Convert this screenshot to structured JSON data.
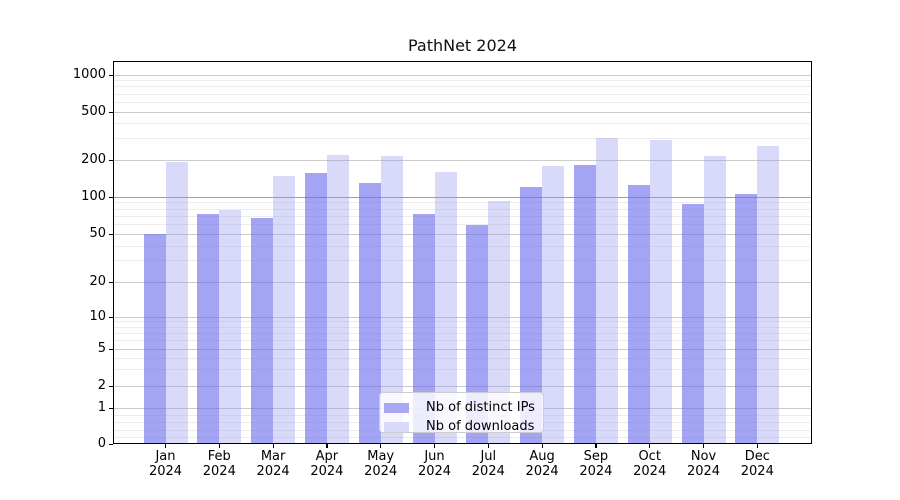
{
  "figure": {
    "title": "PathNet 2024"
  },
  "colors": {
    "ips_bar": "rgba(108,108,239,0.62)",
    "downloads_bar": "rgba(150,150,240,0.36)",
    "ips_legend": "#a8a8f4",
    "downloads_legend": "#d9d9fa",
    "grid_major": "#cbcbcb",
    "grid_minor": "#ececec",
    "grid_hundred": "#9e9e9e"
  },
  "chart_data": {
    "type": "bar",
    "title": "PathNet 2024",
    "categories": [
      "Jan 2024",
      "Feb 2024",
      "Mar 2024",
      "Apr 2024",
      "May 2024",
      "Jun 2024",
      "Jul 2024",
      "Aug 2024",
      "Sep 2024",
      "Oct 2024",
      "Nov 2024",
      "Dec 2024"
    ],
    "month_labels": [
      "Jan",
      "Feb",
      "Mar",
      "Apr",
      "May",
      "Jun",
      "Jul",
      "Aug",
      "Sep",
      "Oct",
      "Nov",
      "Dec"
    ],
    "year_label": "2024",
    "series": [
      {
        "name": "Nb of distinct IPs",
        "values": [
          50,
          72,
          67,
          155,
          128,
          73,
          59,
          120,
          180,
          125,
          87,
          105
        ]
      },
      {
        "name": "Nb of downloads",
        "values": [
          190,
          78,
          146,
          220,
          212,
          158,
          92,
          178,
          300,
          288,
          213,
          257
        ]
      }
    ],
    "xlabel": "",
    "ylabel": "",
    "yscale": "log (compressed linear segment below 1 reaching 0)",
    "yticks": [
      0,
      1,
      2,
      5,
      10,
      20,
      50,
      100,
      200,
      500,
      1000
    ],
    "ylim": [
      0,
      1300
    ],
    "grid": true,
    "legend_position": "lower-center-inside"
  }
}
